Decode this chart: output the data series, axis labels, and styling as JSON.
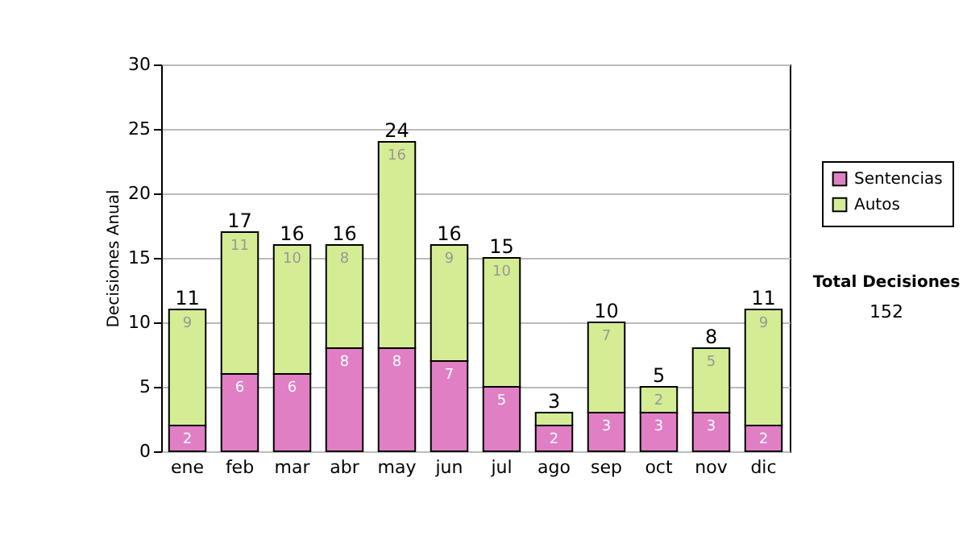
{
  "chart_data": {
    "type": "bar",
    "ylabel": "Decisiones Anual",
    "categories": [
      "ene",
      "feb",
      "mar",
      "abr",
      "may",
      "jun",
      "jul",
      "ago",
      "sep",
      "oct",
      "nov",
      "dic"
    ],
    "series": [
      {
        "name": "Sentencias",
        "color": "#e07fc4",
        "values": [
          2,
          6,
          6,
          8,
          8,
          7,
          5,
          2,
          3,
          3,
          3,
          2
        ],
        "value_labels": [
          "2",
          "6",
          "6",
          "8",
          "8",
          "7",
          "5",
          "2",
          "3",
          "3",
          "3",
          "2"
        ]
      },
      {
        "name": "Autos",
        "color": "#d4ec94",
        "values": [
          9,
          11,
          10,
          8,
          16,
          9,
          10,
          1,
          7,
          2,
          5,
          9
        ],
        "value_labels": [
          "9",
          "11",
          "10",
          "8",
          "16",
          "9",
          "10",
          null,
          "7",
          "2",
          "5",
          "9"
        ]
      }
    ],
    "stacked": true,
    "totals": [
      "11",
      "17",
      "16",
      "16",
      "24",
      "16",
      "15",
      "3",
      "10",
      "5",
      "8",
      "11"
    ],
    "ylim": [
      0,
      30
    ],
    "yticks": [
      0,
      5,
      10,
      15,
      20,
      25,
      30
    ],
    "grid": "y",
    "legend": "right",
    "annotations": [
      "Total Decisiones",
      "152"
    ]
  }
}
